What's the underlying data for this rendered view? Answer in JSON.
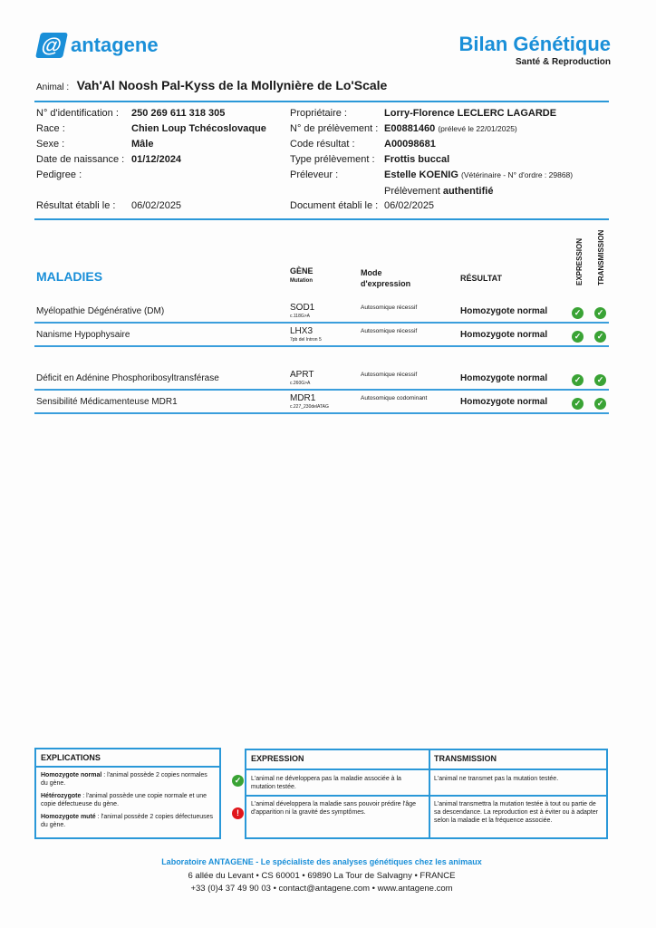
{
  "header": {
    "logo_text": "antagene",
    "title": "Bilan Génétique",
    "subtitle": "Santé & Reproduction",
    "animal_label": "Animal :",
    "animal_name": "Vah'Al Noosh Pal-Kyss de la Mollynière de Lo'Scale"
  },
  "info_left": [
    {
      "label": "N° d'identification :",
      "value": "250 269 611 318 305"
    },
    {
      "label": "Race :",
      "value": "Chien Loup Tchécoslovaque"
    },
    {
      "label": "Sexe :",
      "value": "Mâle"
    },
    {
      "label": "Date de naissance :",
      "value": "01/12/2024"
    },
    {
      "label": "Pedigree :",
      "value": ""
    }
  ],
  "result_date": {
    "label": "Résultat établi le :",
    "value": "06/02/2025"
  },
  "info_right": [
    {
      "label": "Propriétaire :",
      "value": "Lorry-Florence LECLERC LAGARDE",
      "extra": ""
    },
    {
      "label": "N° de prélèvement :",
      "value": "E00881460",
      "extra": "(prélevé le 22/01/2025)"
    },
    {
      "label": "Code résultat :",
      "value": "A00098681",
      "extra": ""
    },
    {
      "label": "Type prélèvement :",
      "value": "Frottis buccal",
      "extra": ""
    },
    {
      "label": "Préleveur :",
      "value": "Estelle KOENIG",
      "extra": "(Vétérinaire - N° d'ordre : 29868)"
    }
  ],
  "authenticated": {
    "prefix": "Prélèvement",
    "value": "authentifié"
  },
  "doc_date": {
    "label": "Document établi le :",
    "value": "06/02/2025"
  },
  "table": {
    "title": "MALADIES",
    "col_gene": "GÈNE",
    "col_mutation": "Mutation",
    "col_mode": "Mode d'expression",
    "col_result": "RÉSULTAT",
    "col_expression": "EXPRESSION",
    "col_transmission": "TRANSMISSION",
    "rows": [
      {
        "disease": "Myélopathie Dégénérative (DM)",
        "gene": "SOD1",
        "mutation": "c.118G>A",
        "mode": "Autosomique récessif",
        "result": "Homozygote normal",
        "expression": "ok",
        "transmission": "ok"
      },
      {
        "disease": "Nanisme Hypophysaire",
        "gene": "LHX3",
        "mutation": "7pb del Intron 5",
        "mode": "Autosomique récessif",
        "result": "Homozygote normal",
        "expression": "ok",
        "transmission": "ok"
      },
      {
        "disease": "Déficit en Adénine Phosphoribosyltransférase",
        "gene": "APRT",
        "mutation": "c.260G>A",
        "mode": "Autosomique récessif",
        "result": "Homozygote normal",
        "expression": "ok",
        "transmission": "ok"
      },
      {
        "disease": "Sensibilité Médicamenteuse MDR1",
        "gene": "MDR1",
        "mutation": "c.227_230delATAG",
        "mode": "Autosomique codominant",
        "result": "Homozygote normal",
        "expression": "ok",
        "transmission": "ok"
      }
    ]
  },
  "explications": {
    "title": "EXPLICATIONS",
    "items": [
      {
        "term": "Homozygote normal",
        "text": " : l'animal possède 2 copies normales du gène."
      },
      {
        "term": "Hétérozygote",
        "text": " : l'animal possède une copie normale et une copie défectueuse du gène."
      },
      {
        "term": "Homozygote muté",
        "text": " : l'animal possède 2 copies défectueuses du gène."
      }
    ]
  },
  "legend": {
    "expression_title": "EXPRESSION",
    "transmission_title": "TRANSMISSION",
    "ok_expression": "L'animal ne développera pas la maladie associée à la mutation testée.",
    "ok_transmission": "L'animal ne transmet pas la mutation testée.",
    "warn_expression": "L'animal développera la maladie sans pouvoir prédire l'âge d'apparition ni la gravité des symptômes.",
    "warn_transmission": "L'animal transmettra la mutation testée à tout ou partie de sa descendance. La reproduction est à éviter ou à adapter selon la maladie et la fréquence associée."
  },
  "footer": {
    "tagline": "Laboratoire ANTAGENE - Le spécialiste des analyses génétiques chez les animaux",
    "address": "6 allée du Levant • CS 60001 • 69890 La Tour de Salvagny • FRANCE",
    "contact": "+33 (0)4 37 49 90 03 • contact@antagene.com • www.antagene.com"
  },
  "colors": {
    "accent": "#1a8fd8",
    "ok": "#3aa335",
    "warn": "#e0161b"
  }
}
